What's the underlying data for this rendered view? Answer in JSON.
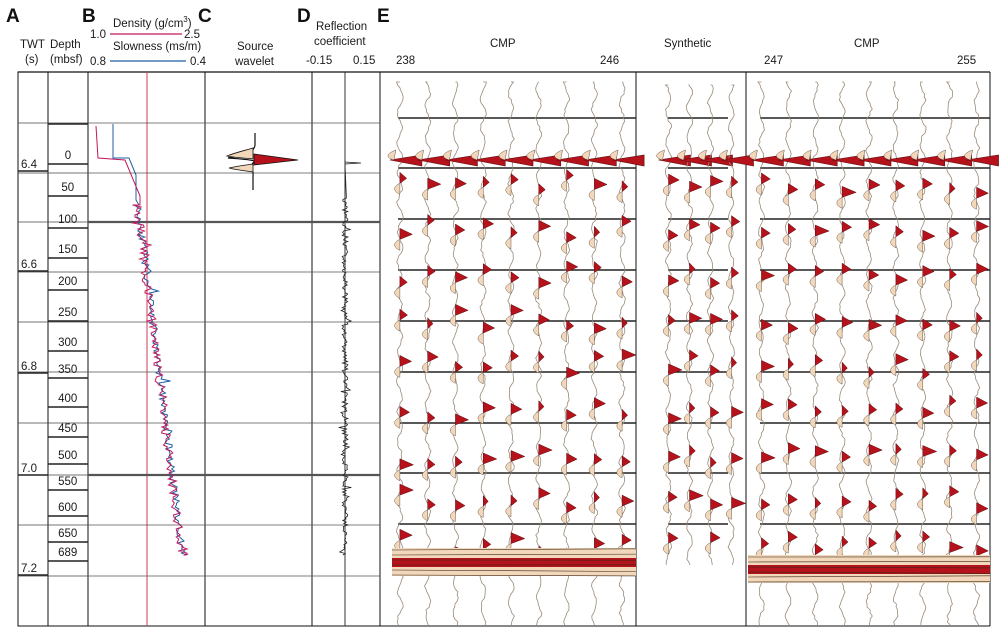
{
  "panels": {
    "a": {
      "letter": "A",
      "title_line1": "TWT",
      "title_line2": "(s)",
      "twt_labels": [
        "6.4",
        "6.6",
        "6.8",
        "7.0",
        "7.2"
      ]
    },
    "depth": {
      "title_line1": "Depth",
      "title_line2": "(mbsf)",
      "labels": [
        "0",
        "50",
        "100",
        "150",
        "200",
        "250",
        "300",
        "350",
        "400",
        "450",
        "500",
        "550",
        "600",
        "650",
        "689"
      ]
    },
    "b": {
      "letter": "B",
      "density_label": "Density (g/cm",
      "density_sup": "3",
      "density_close": ")",
      "density_min": "1.0",
      "density_max": "2.5",
      "slowness_label": "Slowness (ms/m)",
      "slowness_min": "0.8",
      "slowness_max": "0.4"
    },
    "c": {
      "letter": "C",
      "title_line1": "Source",
      "title_line2": "wavelet"
    },
    "d": {
      "letter": "D",
      "title_line1": "Reflection",
      "title_line2": "coefficient",
      "min": "-0.15",
      "max": "0.15"
    },
    "e": {
      "letter": "E",
      "cmp_left_title": "CMP",
      "cmp_left_start": "238",
      "cmp_left_end": "246",
      "synthetic_title": "Synthetic",
      "cmp_right_title": "CMP",
      "cmp_right_start": "247",
      "cmp_right_end": "255"
    }
  },
  "colors": {
    "density": "#c2185b",
    "slowness": "#1f5fa0",
    "wavelet_fill": "#b5121b",
    "wiggle_fill": "#f2d7bb",
    "axis": "#111111",
    "grid": "#555555"
  }
}
